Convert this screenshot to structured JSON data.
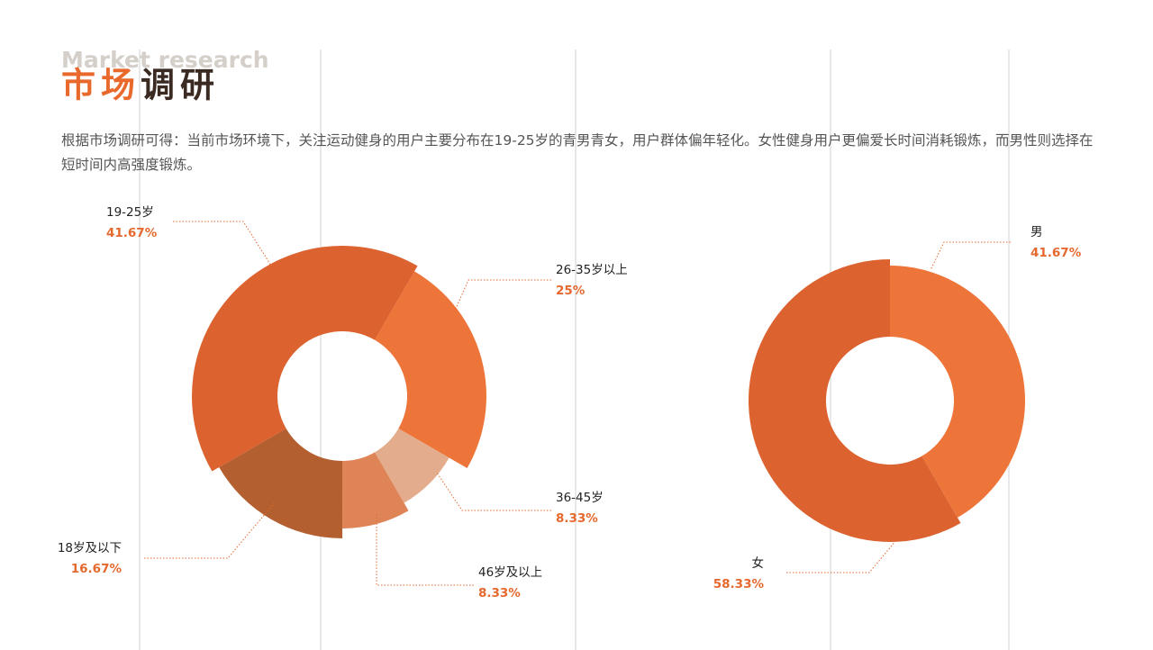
{
  "header": {
    "subtitle": "Market research",
    "title": "市场调研",
    "text": "根据市场调研可得：当前市场环境下，关注运动健身的用户主要分布在19-25岁的青男青女，用户群体偏年轻化。女性健身用户更偏爱长时间消耗锻炼，而男性则选择在短时间内高强度锻炼。"
  },
  "chart_data": [
    {
      "type": "pie",
      "categories": [
        "26-35岁以上",
        "36-45岁",
        "46岁及以上",
        "18岁及以下",
        "19-25岁"
      ],
      "values": [
        25,
        8.33,
        8.33,
        16.67,
        41.67
      ],
      "value_labels": [
        "25%",
        "8.33%",
        "8.33%",
        "16.67%",
        "41.67%"
      ],
      "colors": [
        "#ee7539",
        "#e3ac8c",
        "#df8457",
        "#b35f30",
        "#dc6230"
      ]
    },
    {
      "type": "pie",
      "categories": [
        "男",
        "女"
      ],
      "values": [
        41.67,
        58.33
      ],
      "value_labels": [
        "41.67%",
        "58.33%"
      ],
      "colors": [
        "#ee7539",
        "#dc6230"
      ]
    }
  ]
}
